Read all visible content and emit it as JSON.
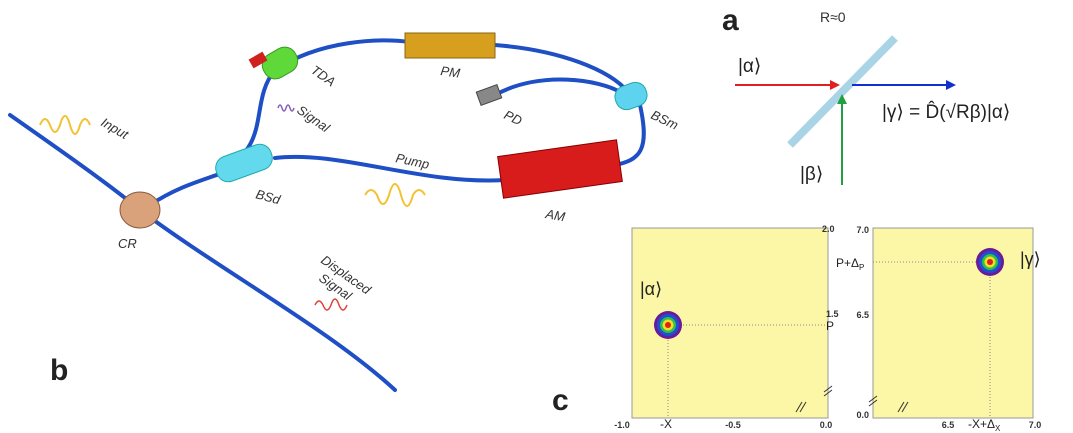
{
  "panel_b": {
    "label": "b",
    "input": "Input",
    "cr": "CR",
    "bsd": "BSd",
    "pump": "Pump",
    "am": "AM",
    "pd": "PD",
    "bsm": "BSm",
    "pm": "PM",
    "tda": "TDA",
    "signal": "Signal",
    "displaced": [
      "Displaced",
      "Signal"
    ]
  },
  "panel_a": {
    "label": "a",
    "reflectivity": "R≈0",
    "alpha": "|α⟩",
    "gamma": "|γ⟩ = D̂(√Rβ)|α⟩",
    "beta": "|β⟩"
  },
  "panel_c": {
    "label": "c",
    "plot_1": {
      "x_ticks": [
        "-1.0",
        "-0.5",
        "0.0"
      ],
      "y_ticks": [
        "2.0",
        "1.5"
      ],
      "x_marker": "-X",
      "y_marker": "P",
      "state": "|α⟩"
    },
    "plot_2": {
      "y_ticks": [
        "7.0",
        "6.5",
        "0.0"
      ],
      "x_ticks": [
        "6.5",
        "7.0"
      ],
      "y_marker": {
        "main": "P+Δ",
        "sub": "P"
      },
      "x_marker": {
        "main": "-X+Δ",
        "sub": "X"
      },
      "state": "|γ⟩"
    }
  }
}
